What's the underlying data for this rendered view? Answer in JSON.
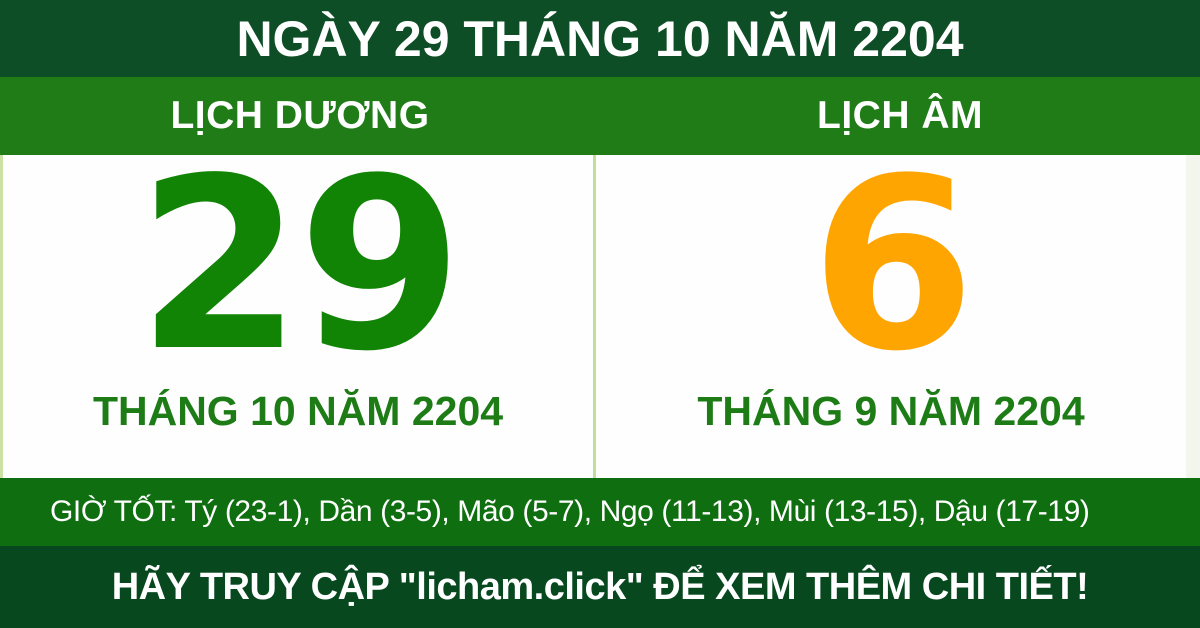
{
  "colors": {
    "dark_green": "#0e4e26",
    "dark_green_bottom": "#07481f",
    "band_green": "#1f7c17",
    "hours_green": "#0f6e10",
    "solar_green": "#118405",
    "lunar_orange": "#ffa502",
    "month_green": "#1d7c15",
    "divider_green": "#bfe09a",
    "panel_white": "#fefefe",
    "text_white": "#ffffff"
  },
  "header": {
    "title": "NGÀY 29 THÁNG 10 NĂM 2204"
  },
  "calendar": {
    "solar": {
      "label": "LỊCH DƯƠNG",
      "day": "29",
      "month_year": "THÁNG 10 NĂM 2204"
    },
    "lunar": {
      "label": "LỊCH ÂM",
      "day": "6",
      "month_year": "THÁNG 9 NĂM 2204"
    }
  },
  "good_hours": {
    "text": "GIỜ TỐT: Tý (23-1), Dần (3-5), Mão (5-7), Ngọ (11-13), Mùi (13-15), Dậu (17-19)"
  },
  "footer": {
    "text": "HÃY TRUY CẬP \"licham.click\" ĐỂ XEM THÊM CHI TIẾT!"
  }
}
